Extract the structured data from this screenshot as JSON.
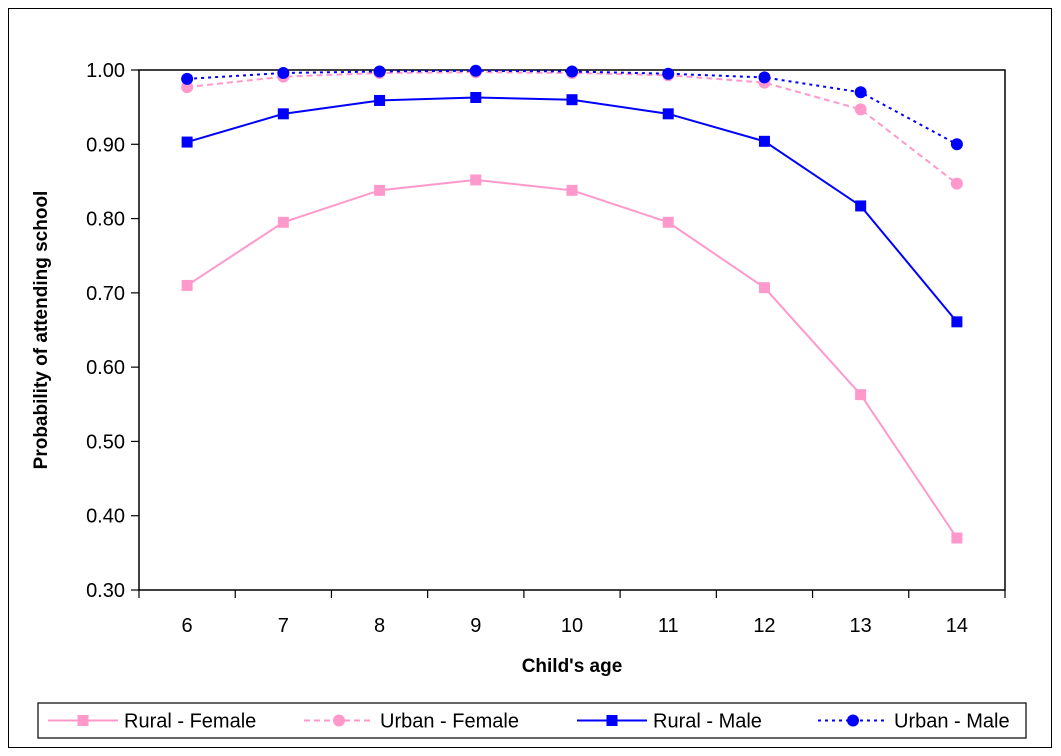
{
  "chart_data": {
    "type": "line",
    "title": "",
    "xlabel": "Child's age",
    "ylabel": "Probability of attending school",
    "categories": [
      "6",
      "7",
      "8",
      "9",
      "10",
      "11",
      "12",
      "13",
      "14"
    ],
    "ylim": [
      0.3,
      1.0
    ],
    "yticks": [
      "0.30",
      "0.40",
      "0.50",
      "0.60",
      "0.70",
      "0.80",
      "0.90",
      "1.00"
    ],
    "grid": false,
    "legend_position": "bottom",
    "series": [
      {
        "name": "Rural - Female",
        "color": "#ff99cc",
        "line": "solid",
        "marker": "square",
        "values": [
          0.71,
          0.795,
          0.838,
          0.852,
          0.838,
          0.795,
          0.707,
          0.563,
          0.37
        ]
      },
      {
        "name": "Urban - Female",
        "color": "#ff99cc",
        "line": "dashed",
        "marker": "circle",
        "values": [
          0.977,
          0.991,
          0.996,
          0.997,
          0.996,
          0.993,
          0.983,
          0.947,
          0.847
        ]
      },
      {
        "name": "Rural - Male",
        "color": "#0000ff",
        "line": "solid",
        "marker": "square",
        "values": [
          0.903,
          0.941,
          0.959,
          0.963,
          0.96,
          0.941,
          0.904,
          0.817,
          0.661
        ]
      },
      {
        "name": "Urban - Male",
        "color": "#0000ff",
        "line": "dotted",
        "marker": "circle",
        "values": [
          0.988,
          0.996,
          0.998,
          0.999,
          0.998,
          0.995,
          0.99,
          0.97,
          0.9
        ]
      }
    ]
  }
}
